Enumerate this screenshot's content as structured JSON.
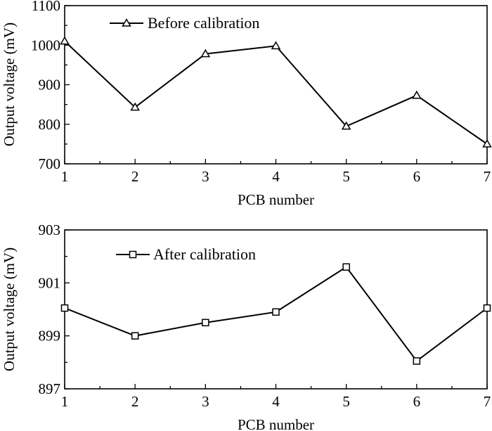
{
  "chart_data": [
    {
      "type": "line",
      "xlabel": "PCB number",
      "ylabel": "Output voltage (mV)",
      "x": [
        1,
        2,
        3,
        4,
        5,
        6,
        7
      ],
      "xlim": [
        1,
        7
      ],
      "ylim": [
        700,
        1100
      ],
      "yticks": [
        700,
        800,
        900,
        1000,
        1100
      ],
      "xticks": [
        1,
        2,
        3,
        4,
        5,
        6,
        7
      ],
      "legend_position": "top-left",
      "series": [
        {
          "name": "Before calibration",
          "marker": "triangle",
          "values": [
            1010,
            843,
            978,
            998,
            795,
            873,
            750
          ]
        }
      ]
    },
    {
      "type": "line",
      "xlabel": "PCB number",
      "ylabel": "Output voltage (mV)",
      "x": [
        1,
        2,
        3,
        4,
        5,
        6,
        7
      ],
      "xlim": [
        1,
        7
      ],
      "ylim": [
        897,
        903
      ],
      "yticks": [
        897,
        899,
        901,
        903
      ],
      "xticks": [
        1,
        2,
        3,
        4,
        5,
        6,
        7
      ],
      "legend_position": "top-left",
      "series": [
        {
          "name": "After calibration",
          "marker": "square",
          "values": [
            900.05,
            899.0,
            899.5,
            899.9,
            901.6,
            898.05,
            900.05
          ]
        }
      ]
    }
  ]
}
